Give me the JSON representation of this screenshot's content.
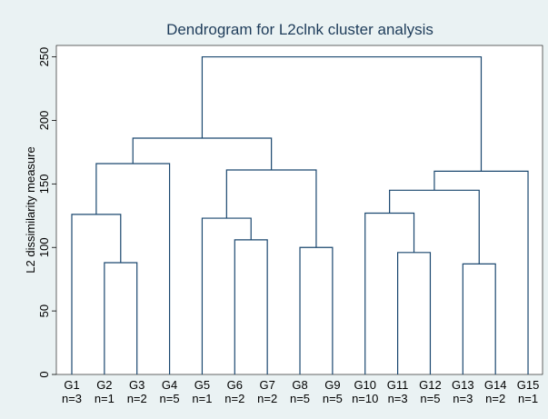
{
  "chart_data": {
    "type": "dendrogram",
    "title": "Dendrogram for L2clnk cluster analysis",
    "ylabel": "L2 dissimilarity measure",
    "leaves": [
      {
        "name": "G1",
        "n": "n=3"
      },
      {
        "name": "G2",
        "n": "n=1"
      },
      {
        "name": "G3",
        "n": "n=2"
      },
      {
        "name": "G4",
        "n": "n=5"
      },
      {
        "name": "G5",
        "n": "n=1"
      },
      {
        "name": "G6",
        "n": "n=2"
      },
      {
        "name": "G7",
        "n": "n=2"
      },
      {
        "name": "G8",
        "n": "n=5"
      },
      {
        "name": "G9",
        "n": "n=5"
      },
      {
        "name": "G10",
        "n": "n=10"
      },
      {
        "name": "G11",
        "n": "n=3"
      },
      {
        "name": "G12",
        "n": "n=5"
      },
      {
        "name": "G13",
        "n": "n=3"
      },
      {
        "name": "G14",
        "n": "n=2"
      },
      {
        "name": "G15",
        "n": "n=1"
      }
    ],
    "merges": [
      {
        "children": [
          1,
          2
        ],
        "height": 88
      },
      {
        "children": [
          0,
          15
        ],
        "height": 126
      },
      {
        "children": [
          16,
          3
        ],
        "height": 166
      },
      {
        "children": [
          5,
          6
        ],
        "height": 106
      },
      {
        "children": [
          4,
          18
        ],
        "height": 123
      },
      {
        "children": [
          7,
          8
        ],
        "height": 100
      },
      {
        "children": [
          19,
          20
        ],
        "height": 161
      },
      {
        "children": [
          17,
          21
        ],
        "height": 186
      },
      {
        "children": [
          10,
          11
        ],
        "height": 96
      },
      {
        "children": [
          9,
          23
        ],
        "height": 127
      },
      {
        "children": [
          12,
          13
        ],
        "height": 87
      },
      {
        "children": [
          24,
          25
        ],
        "height": 145
      },
      {
        "children": [
          26,
          14
        ],
        "height": 160
      },
      {
        "children": [
          22,
          27
        ],
        "height": 250
      }
    ],
    "color": "#1a476f",
    "ylim": [
      0,
      259
    ],
    "yticks": [
      0,
      50,
      100,
      150,
      200,
      250
    ]
  }
}
